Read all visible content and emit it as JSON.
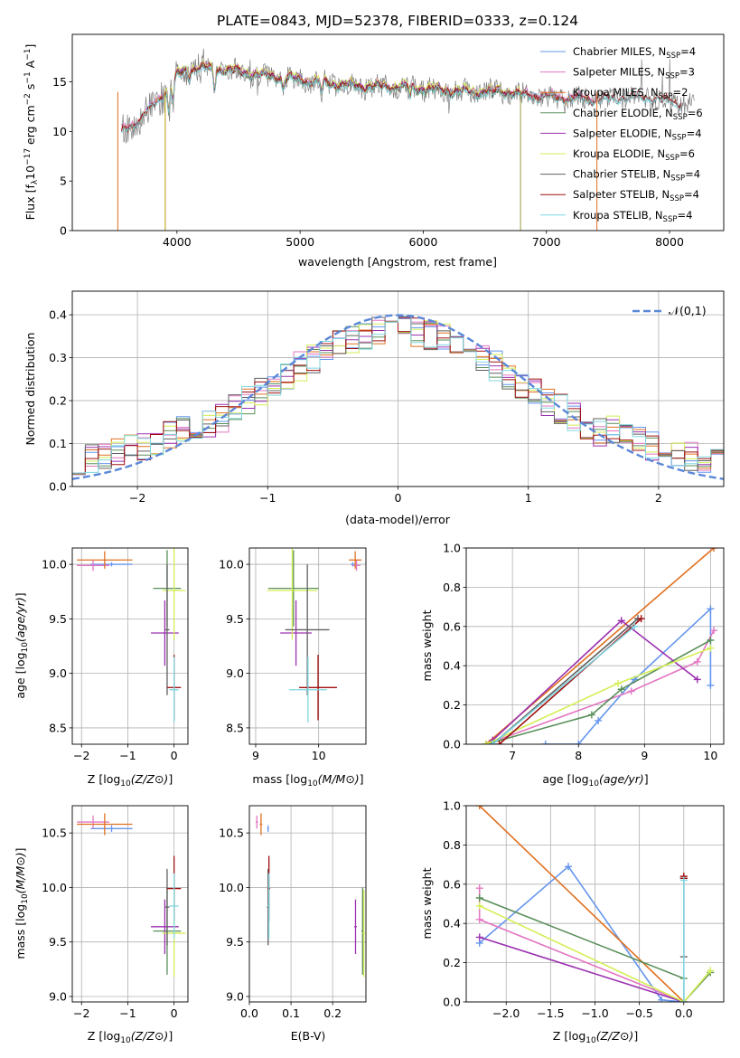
{
  "title": "PLATE=0843, MJD=52378, FIBERID=0333, z=0.124",
  "colors": {
    "Chabrier MILES": "#6495ed",
    "Salpeter MILES": "#e377c2",
    "Kroupa MILES": "#e07020",
    "Chabrier ELODIE": "#5a8f5a",
    "Salpeter ELODIE": "#9b30b0",
    "Kroupa ELODIE": "#d4ee55",
    "Chabrier STELIB": "#606060",
    "Salpeter STELIB": "#a01010",
    "Kroupa STELIB": "#7fd7e0",
    "data": "#808080",
    "normal": "#5b87d8"
  },
  "chart_data": [
    {
      "id": "spectrum",
      "type": "line",
      "title": "PLATE=0843, MJD=52378, FIBERID=0333, z=0.124",
      "xlabel": "wavelength [Angstrom, rest frame]",
      "ylabel": "Flux [f_λ 10^-17 erg cm^-2 s^-1 A^-1]",
      "xlim": [
        3150,
        8440
      ],
      "ylim": [
        0,
        19.8
      ],
      "xticks": [
        4000,
        5000,
        6000,
        7000,
        8000
      ],
      "yticks": [
        0,
        5,
        10,
        15
      ],
      "grid": false,
      "legend_position": "top-right",
      "continuum": {
        "x": [
          3550,
          3700,
          3800,
          3900,
          4000,
          4100,
          4200,
          4400,
          4600,
          4800,
          5000,
          5200,
          5400,
          5600,
          5800,
          6000,
          6200,
          6400,
          6600,
          6800,
          7000,
          7200,
          7400,
          7600,
          7800,
          8000,
          8200
        ],
        "y": [
          9.9,
          11.2,
          12.5,
          14.0,
          15.6,
          16.3,
          16.4,
          16.2,
          15.8,
          15.5,
          15.2,
          14.9,
          14.6,
          14.5,
          14.5,
          14.3,
          14.1,
          13.9,
          14.1,
          13.7,
          13.5,
          13.3,
          13.2,
          13.4,
          13.5,
          13.0,
          12.6
        ]
      },
      "series": [
        {
          "name": "Chabrier MILES, N_SSP=4",
          "label_main": "Chabrier MILES, N",
          "label_sub": "SSP",
          "label_tail": "=4",
          "range": [
            3550,
            7420
          ],
          "offset": 0.1
        },
        {
          "name": "Salpeter MILES, N_SSP=3",
          "label_main": "Salpeter MILES, N",
          "label_sub": "SSP",
          "label_tail": "=3",
          "range": [
            3550,
            7420
          ],
          "offset": 0.2
        },
        {
          "name": "Kroupa MILES, N_SSP=2",
          "label_main": "Kroupa MILES, N",
          "label_sub": "SSP",
          "label_tail": "=2",
          "range": [
            3550,
            7420
          ],
          "offset": 0.0
        },
        {
          "name": "Chabrier ELODIE, N_SSP=6",
          "label_main": "Chabrier ELODIE, N",
          "label_sub": "SSP",
          "label_tail": "=6",
          "range": [
            3900,
            6800
          ],
          "offset": -0.1
        },
        {
          "name": "Salpeter ELODIE, N_SSP=4",
          "label_main": "Salpeter ELODIE, N",
          "label_sub": "SSP",
          "label_tail": "=4",
          "range": [
            3900,
            6800
          ],
          "offset": 0.15
        },
        {
          "name": "Kroupa ELODIE, N_SSP=6",
          "label_main": "Kroupa ELODIE, N",
          "label_sub": "SSP",
          "label_tail": "=6",
          "range": [
            3900,
            6800
          ],
          "offset": 0.3
        },
        {
          "name": "Chabrier STELIB, N_SSP=4",
          "label_main": "Chabrier STELIB, N",
          "label_sub": "SSP",
          "label_tail": "=4",
          "range": [
            3550,
            8100
          ],
          "offset": -0.05
        },
        {
          "name": "Salpeter STELIB, N_SSP=4",
          "label_main": "Salpeter STELIB, N",
          "label_sub": "SSP",
          "label_tail": "=4",
          "range": [
            3550,
            8100
          ],
          "offset": 0.05
        },
        {
          "name": "Kroupa STELIB, N_SSP=4",
          "label_main": "Kroupa STELIB, N",
          "label_sub": "SSP",
          "label_tail": "=4",
          "range": [
            3550,
            8100
          ],
          "offset": -0.15
        }
      ]
    },
    {
      "id": "residuals",
      "type": "histogram",
      "xlabel": "(data-model)/error",
      "ylabel": "Normed distribution",
      "xlim": [
        -2.5,
        2.5
      ],
      "ylim": [
        0,
        0.455
      ],
      "xticks": [
        -2,
        -1,
        0,
        1,
        2
      ],
      "yticks": [
        0.0,
        0.1,
        0.2,
        0.3,
        0.4
      ],
      "grid": true,
      "legend": "𝒩(0,1)",
      "legend_position": "top-right",
      "bin_width": 0.1,
      "normal_curve": {
        "mu": 0,
        "sigma": 1
      }
    },
    {
      "id": "age_vs_Z",
      "type": "errorbar",
      "xlabel": "Z [log10(Z/Z⊙)]",
      "ylabel": "age  [log10(age/yr)]",
      "xlim": [
        -2.2,
        0.3
      ],
      "ylim": [
        8.35,
        10.15
      ],
      "xticks": [
        -2,
        -1,
        0
      ],
      "yticks": [
        8.5,
        9.0,
        9.5,
        10.0
      ],
      "grid": true
    },
    {
      "id": "age_vs_mass",
      "type": "errorbar",
      "xlabel": "mass [log10(M/M⊙)]",
      "xlim": [
        8.9,
        10.75
      ],
      "ylim": [
        8.35,
        10.15
      ],
      "xticks": [
        9,
        10
      ],
      "yticks": [
        8.5,
        9.0,
        9.5,
        10.0
      ],
      "grid": true
    },
    {
      "id": "weight_vs_age",
      "type": "line",
      "xlabel": "age  [log10(age/yr)]",
      "ylabel": "mass weight",
      "xlim": [
        6.3,
        10.2
      ],
      "ylim": [
        0,
        1
      ],
      "xticks": [
        7,
        8,
        9,
        10
      ],
      "yticks": [
        0.0,
        0.2,
        0.4,
        0.6,
        0.8,
        1.0
      ],
      "grid": true
    },
    {
      "id": "mass_vs_Z",
      "type": "errorbar",
      "xlabel": "Z [log10(Z/Z⊙)]",
      "ylabel": "mass [log10(M/M⊙)]",
      "xlim": [
        -2.2,
        0.3
      ],
      "ylim": [
        8.95,
        10.75
      ],
      "xticks": [
        -2,
        -1,
        0
      ],
      "yticks": [
        9.0,
        9.5,
        10.0,
        10.5
      ],
      "grid": true
    },
    {
      "id": "mass_vs_ebv",
      "type": "errorbar",
      "xlabel": "E(B-V)",
      "xlim": [
        0,
        0.28
      ],
      "ylim": [
        8.95,
        10.75
      ],
      "xticks": [
        0.0,
        0.1,
        0.2
      ],
      "yticks": [
        9.0,
        9.5,
        10.0,
        10.5
      ],
      "grid": true
    },
    {
      "id": "weight_vs_Z",
      "type": "line",
      "xlabel": "Z [log10(Z/Z⊙)]",
      "ylabel": "mass weight",
      "xlim": [
        -2.45,
        0.45
      ],
      "ylim": [
        0,
        1
      ],
      "xticks": [
        -2.0,
        -1.5,
        -1.0,
        -0.5,
        0.0
      ],
      "yticks": [
        0.0,
        0.2,
        0.4,
        0.6,
        0.8,
        1.0
      ],
      "grid": true
    }
  ],
  "fits": [
    {
      "model": "Chabrier MILES",
      "age": 10.0,
      "age_err": 0.02,
      "Z": -1.35,
      "Z_err": 0.45,
      "mass": 10.54,
      "mass_err": 0.03,
      "ebv": 0.045,
      "ebv_err": 0.002,
      "weights_age": [
        [
          7.5,
          0.0
        ],
        [
          8.0,
          0.0
        ],
        [
          8.3,
          0.12
        ],
        [
          8.85,
          0.33
        ],
        [
          10.0,
          0.69
        ],
        [
          10.0,
          0.3
        ]
      ],
      "weights_Z": [
        [
          -2.3,
          0.3
        ],
        [
          -1.3,
          0.69
        ],
        [
          -0.25,
          0.01
        ],
        [
          0.0,
          0.0
        ]
      ]
    },
    {
      "model": "Salpeter MILES",
      "age": 9.99,
      "age_err": 0.05,
      "Z": -1.75,
      "Z_err": 0.35,
      "mass": 10.6,
      "mass_err": 0.06,
      "ebv": 0.018,
      "ebv_err": 0.003,
      "weights_age": [
        [
          6.6,
          0.0
        ],
        [
          8.8,
          0.27
        ],
        [
          9.8,
          0.42
        ],
        [
          10.05,
          0.58
        ]
      ],
      "weights_Z": [
        [
          -2.3,
          0.58
        ],
        [
          -2.3,
          0.42
        ],
        [
          0.0,
          0.0
        ]
      ]
    },
    {
      "model": "Kroupa MILES",
      "age": 10.04,
      "age_err": 0.08,
      "Z": -1.5,
      "Z_err": 0.6,
      "mass": 10.58,
      "mass_err": 0.1,
      "ebv": 0.028,
      "ebv_err": 0.003,
      "weights_age": [
        [
          6.6,
          0.0
        ],
        [
          10.05,
          1.0
        ]
      ],
      "weights_Z": [
        [
          -2.3,
          1.0
        ],
        [
          0.0,
          0.0
        ]
      ]
    },
    {
      "model": "Chabrier ELODIE",
      "age": 9.78,
      "age_err": 0.35,
      "Z": -0.15,
      "Z_err": 0.3,
      "mass": 9.6,
      "mass_err": 0.4,
      "ebv": 0.272,
      "ebv_err": 0.003,
      "weights_age": [
        [
          6.6,
          0.0
        ],
        [
          8.2,
          0.15
        ],
        [
          8.65,
          0.28
        ],
        [
          10.0,
          0.53
        ]
      ],
      "weights_Z": [
        [
          -2.3,
          0.53
        ],
        [
          0.0,
          0.12
        ],
        [
          0.0,
          0.0
        ],
        [
          0.3,
          0.15
        ]
      ]
    },
    {
      "model": "Salpeter ELODIE",
      "age": 9.37,
      "age_err": 0.3,
      "Z": -0.2,
      "Z_err": 0.3,
      "mass": 9.64,
      "mass_err": 0.25,
      "ebv": 0.255,
      "ebv_err": 0.003,
      "weights_age": [
        [
          6.7,
          0.02
        ],
        [
          8.65,
          0.63
        ],
        [
          9.8,
          0.33
        ]
      ],
      "weights_Z": [
        [
          -2.3,
          0.33
        ],
        [
          0.0,
          0.0
        ]
      ]
    },
    {
      "model": "Kroupa ELODIE",
      "age": 9.76,
      "age_err": 0.45,
      "Z": 0.0,
      "Z_err": 0.25,
      "mass": 9.58,
      "mass_err": 0.4,
      "ebv": 0.275,
      "ebv_err": 0.003,
      "weights_age": [
        [
          6.6,
          0.0
        ],
        [
          8.6,
          0.31
        ],
        [
          10.0,
          0.49
        ]
      ],
      "weights_Z": [
        [
          -2.3,
          0.49
        ],
        [
          0.0,
          0.0
        ],
        [
          0.3,
          0.16
        ]
      ]
    },
    {
      "model": "Chabrier STELIB",
      "age": 9.4,
      "age_err": 0.6,
      "Z": -0.15,
      "Z_err": 0.05,
      "mass": 9.82,
      "mass_err": 0.35,
      "ebv": 0.045,
      "ebv_err": 0.003,
      "weights_age": [
        [
          6.7,
          0.0
        ],
        [
          8.9,
          0.64
        ]
      ],
      "weights_Z": [
        [
          0.0,
          0.23
        ],
        [
          0.0,
          0.63
        ]
      ]
    },
    {
      "model": "Salpeter STELIB",
      "age": 8.87,
      "age_err": 0.3,
      "Z": 0.0,
      "Z_err": 0.15,
      "mass": 9.99,
      "mass_err": 0.3,
      "ebv": 0.047,
      "ebv_err": 0.003,
      "weights_age": [
        [
          6.8,
          0.0
        ],
        [
          8.95,
          0.64
        ]
      ],
      "weights_Z": [
        [
          0.0,
          0.63
        ],
        [
          0.0,
          0.64
        ]
      ]
    },
    {
      "model": "Kroupa STELIB",
      "age": 8.85,
      "age_err": 0.3,
      "Z": 0.0,
      "Z_err": 0.1,
      "mass": 9.83,
      "mass_err": 0.3,
      "ebv": 0.047,
      "ebv_err": 0.003,
      "weights_age": [
        [
          6.7,
          0.0
        ],
        [
          8.85,
          0.6
        ]
      ],
      "weights_Z": [
        [
          0.0,
          0.0
        ],
        [
          0.0,
          0.62
        ]
      ]
    }
  ]
}
